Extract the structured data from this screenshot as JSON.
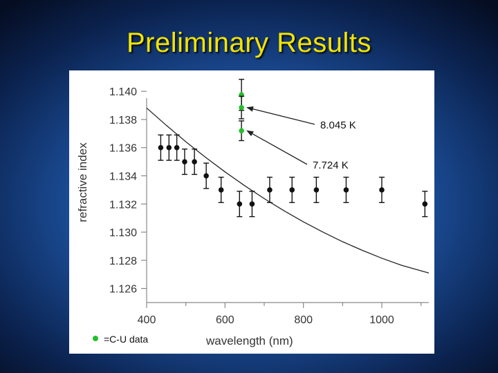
{
  "slide": {
    "title": "Preliminary Results"
  },
  "colors": {
    "title": "#f2e400",
    "data_points": "#111111",
    "cu_points": "#22c02a",
    "fit_curve": "#222222"
  },
  "chart_data": {
    "type": "scatter",
    "title": "",
    "xlabel": "wavelength (nm)",
    "ylabel": "refractive index",
    "xlim": [
      400,
      1120
    ],
    "ylim": [
      1.125,
      1.1405
    ],
    "xticks": [
      400,
      600,
      800,
      1000
    ],
    "xticklabels": [
      "400",
      "600",
      "800",
      "1000"
    ],
    "yticks": [
      1.126,
      1.128,
      1.13,
      1.132,
      1.134,
      1.136,
      1.138,
      1.14
    ],
    "yticklabels": [
      "1.126",
      "1.128",
      "1.130",
      "1.132",
      "1.134",
      "1.136",
      "1.138",
      "1.140"
    ],
    "grid": false,
    "series": [
      {
        "marker": "dot",
        "color": "#111111",
        "points": [
          {
            "x": 436,
            "y": 1.136,
            "err": 0.0009
          },
          {
            "x": 457,
            "y": 1.136,
            "err": 0.0009
          },
          {
            "x": 477,
            "y": 1.136,
            "err": 0.0009
          },
          {
            "x": 497,
            "y": 1.135,
            "err": 0.0009
          },
          {
            "x": 522,
            "y": 1.135,
            "err": 0.0009
          },
          {
            "x": 552,
            "y": 1.134,
            "err": 0.0009
          },
          {
            "x": 590,
            "y": 1.133,
            "err": 0.0009
          },
          {
            "x": 637,
            "y": 1.132,
            "err": 0.0009
          },
          {
            "x": 669,
            "y": 1.132,
            "err": 0.0009
          },
          {
            "x": 714,
            "y": 1.133,
            "err": 0.0009
          },
          {
            "x": 771,
            "y": 1.133,
            "err": 0.0009
          },
          {
            "x": 833,
            "y": 1.133,
            "err": 0.0009
          },
          {
            "x": 909,
            "y": 1.133,
            "err": 0.0009
          },
          {
            "x": 1000,
            "y": 1.133,
            "err": 0.0009
          },
          {
            "x": 1110,
            "y": 1.132,
            "err": 0.0009
          }
        ]
      },
      {
        "marker": "dot",
        "color": "#22c02a",
        "points": [
          {
            "x": 642,
            "y": 1.13975,
            "err": 0.0011
          },
          {
            "x": 642,
            "y": 1.13885,
            "err": 0.0008
          },
          {
            "x": 642,
            "y": 1.1372,
            "err": 0.0007
          }
        ]
      }
    ],
    "fit_curve": [
      [
        400,
        1.13882
      ],
      [
        450,
        1.13759
      ],
      [
        500,
        1.13642
      ],
      [
        550,
        1.13532
      ],
      [
        600,
        1.13428
      ],
      [
        650,
        1.1333
      ],
      [
        700,
        1.13238
      ],
      [
        750,
        1.13153
      ],
      [
        800,
        1.13073
      ],
      [
        850,
        1.13
      ],
      [
        900,
        1.12932
      ],
      [
        950,
        1.12871
      ],
      [
        1000,
        1.12815
      ],
      [
        1050,
        1.12765
      ],
      [
        1120,
        1.1271
      ]
    ],
    "annotations": [
      {
        "text": "8.045 K",
        "target": {
          "x": 642,
          "y": 1.13885
        }
      },
      {
        "text": "7.724 K",
        "target": {
          "x": 642,
          "y": 1.1372
        }
      }
    ],
    "legend": {
      "label": "=C-U data",
      "marker_color": "#22c02a",
      "placement": "bottom-left"
    }
  }
}
